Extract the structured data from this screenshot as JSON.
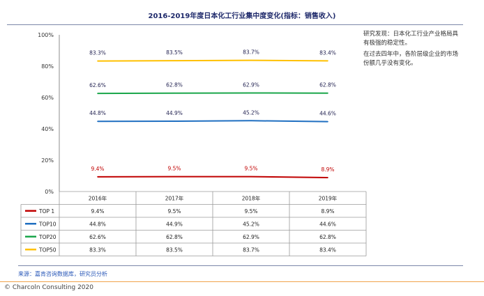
{
  "page": {
    "title": "2016-2019年度日本化工行业集中度变化(指标：销售收入)",
    "notes": [
      "研究发现：日本化工行业产业格局具有极强的稳定性。",
      "在过去四年中，各阶层级企业的市场份额几乎没有变化。"
    ],
    "source": "来源：嘉肯咨询数据库，研究员分析",
    "copyright": "© Charcoln Consulting 2020"
  },
  "chart_data": {
    "type": "line",
    "title": "2016-2019年度日本化工行业集中度变化(指标：销售收入)",
    "categories": [
      "2016年",
      "2017年",
      "2018年",
      "2019年"
    ],
    "ylim": [
      0,
      100
    ],
    "yticks": [
      0,
      20,
      40,
      60,
      80,
      100
    ],
    "ytick_labels": [
      "0%",
      "20%",
      "40%",
      "60%",
      "80%",
      "100%"
    ],
    "grid": false,
    "legend": "table-left",
    "series": [
      {
        "name": "TOP 1",
        "color": "#c00000",
        "values": [
          9.4,
          9.5,
          9.5,
          8.9
        ],
        "labels": [
          "9.4%",
          "9.5%",
          "9.5%",
          "8.9%"
        ]
      },
      {
        "name": "TOP10",
        "color": "#1f6fc1",
        "values": [
          44.8,
          44.9,
          45.2,
          44.6
        ],
        "labels": [
          "44.8%",
          "44.9%",
          "45.2%",
          "44.6%"
        ]
      },
      {
        "name": "TOP20",
        "color": "#1aa64a",
        "values": [
          62.6,
          62.8,
          62.9,
          62.8
        ],
        "labels": [
          "62.6%",
          "62.8%",
          "62.9%",
          "62.8%"
        ]
      },
      {
        "name": "TOP50",
        "color": "#ffc000",
        "values": [
          83.3,
          83.5,
          83.7,
          83.4
        ],
        "labels": [
          "83.3%",
          "83.5%",
          "83.7%",
          "83.4%"
        ]
      }
    ]
  }
}
